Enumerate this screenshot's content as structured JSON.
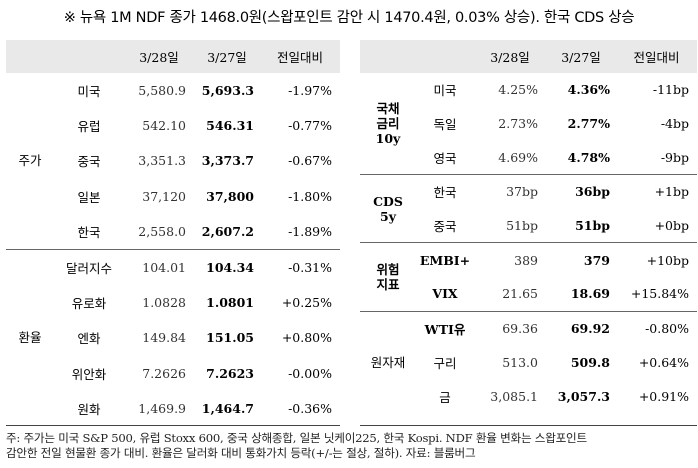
{
  "title": "※ 뉴욕 1M NDF 종가 1468.0원(스왑포인트 감안 시 1470.4원, 0.03% 상승). 한국 CDS 상승",
  "headers": {
    "col1": "3/28일",
    "col2": "3/27일",
    "col3": "전일대비"
  },
  "left": {
    "groups": [
      {
        "label": "주가",
        "rows": [
          {
            "name": "미국",
            "v1": "5,580.9",
            "v2": "5,693.3",
            "chg": "-1.97%"
          },
          {
            "name": "유럽",
            "v1": "542.10",
            "v2": "546.31",
            "chg": "-0.77%"
          },
          {
            "name": "중국",
            "v1": "3,351.3",
            "v2": "3,373.7",
            "chg": "-0.67%"
          },
          {
            "name": "일본",
            "v1": "37,120",
            "v2": "37,800",
            "chg": "-1.80%"
          },
          {
            "name": "한국",
            "v1": "2,558.0",
            "v2": "2,607.2",
            "chg": "-1.89%"
          }
        ]
      },
      {
        "label": "환율",
        "rows": [
          {
            "name": "달러지수",
            "v1": "104.01",
            "v2": "104.34",
            "chg": "-0.31%"
          },
          {
            "name": "유로화",
            "v1": "1.0828",
            "v2": "1.0801",
            "chg": "+0.25%"
          },
          {
            "name": "엔화",
            "v1": "149.84",
            "v2": "151.05",
            "chg": "+0.80%"
          },
          {
            "name": "위안화",
            "v1": "7.2626",
            "v2": "7.2623",
            "chg": "-0.00%"
          },
          {
            "name": "원화",
            "v1": "1,469.9",
            "v2": "1,464.7",
            "chg": "-0.36%"
          }
        ]
      }
    ]
  },
  "right": {
    "groups": [
      {
        "label": "국채\n금리\n10y",
        "rows": [
          {
            "name": "미국",
            "v1": "4.25%",
            "v2": "4.36%",
            "chg": "-11bp"
          },
          {
            "name": "독일",
            "v1": "2.73%",
            "v2": "2.77%",
            "chg": "-4bp"
          },
          {
            "name": "영국",
            "v1": "4.69%",
            "v2": "4.78%",
            "chg": "-9bp"
          }
        ]
      },
      {
        "label": "CDS\n5y",
        "rows": [
          {
            "name": "한국",
            "v1": "37bp",
            "v2": "36bp",
            "chg": "+1bp"
          },
          {
            "name": "중국",
            "v1": "51bp",
            "v2": "51bp",
            "chg": "+0bp"
          }
        ]
      },
      {
        "label": "위험\n지표",
        "rows": [
          {
            "name": "EMBI+",
            "v1": "389",
            "v2": "379",
            "chg": "+10bp"
          },
          {
            "name": "VIX",
            "v1": "21.65",
            "v2": "18.69",
            "chg": "+15.84%"
          }
        ]
      },
      {
        "label": "원자재",
        "rows": [
          {
            "name": "WTI유",
            "v1": "69.36",
            "v2": "69.92",
            "chg": "-0.80%"
          },
          {
            "name": "구리",
            "v1": "513.0",
            "v2": "509.8",
            "chg": "+0.64%"
          },
          {
            "name": "금",
            "v1": "3,085.1",
            "v2": "3,057.3",
            "chg": "+0.91%"
          }
        ]
      }
    ]
  },
  "note": {
    "line1": "주: 주가는 미국 S&P 500, 유럽 Stoxx 600, 중국 상해종합, 일본 닛케이225, 한국 Kospi. NDF 환율 변화는 스왑포인트",
    "line2": "감안한 전일 현물환 종가 대비. 환율은 달러화 대비 통화가치 등락(+/-는 절상, 절하). 자료: 블룸버그"
  }
}
